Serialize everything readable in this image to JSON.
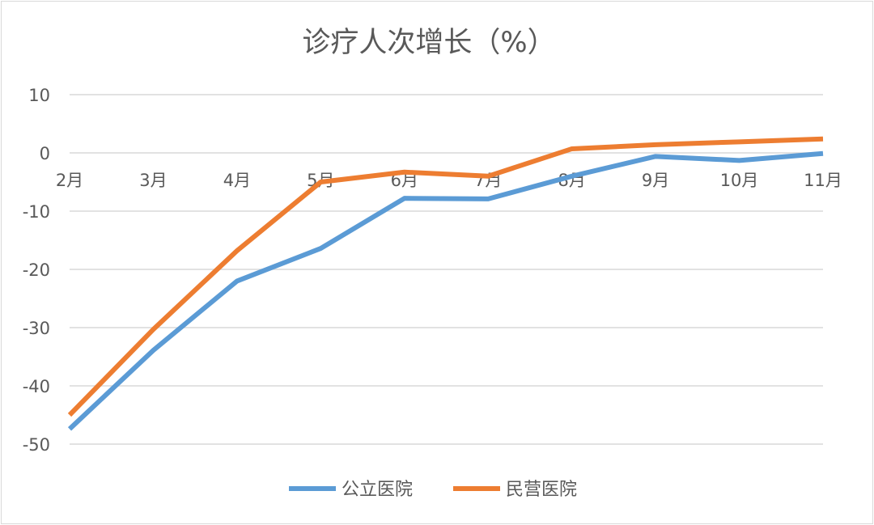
{
  "chart_data": {
    "type": "line",
    "title": "诊疗人次增长（%）",
    "xlabel": "",
    "ylabel": "",
    "categories": [
      "2月",
      "3月",
      "4月",
      "5月",
      "6月",
      "7月",
      "8月",
      "9月",
      "10月",
      "11月"
    ],
    "ylim": [
      -50,
      10
    ],
    "yticks": [
      10,
      0,
      -10,
      -20,
      -30,
      -40,
      -50
    ],
    "grid": true,
    "legend": "bottom",
    "series": [
      {
        "name": "公立医院",
        "color": "#5b9bd5",
        "values": [
          -47.4,
          -33.9,
          -22.0,
          -16.4,
          -7.8,
          -7.9,
          -4.0,
          -0.6,
          -1.3,
          -0.1
        ]
      },
      {
        "name": "民营医院",
        "color": "#ed7d31",
        "values": [
          -45.0,
          -30.3,
          -16.8,
          -5.0,
          -3.3,
          -4.0,
          0.7,
          1.4,
          1.9,
          2.4
        ]
      }
    ]
  }
}
